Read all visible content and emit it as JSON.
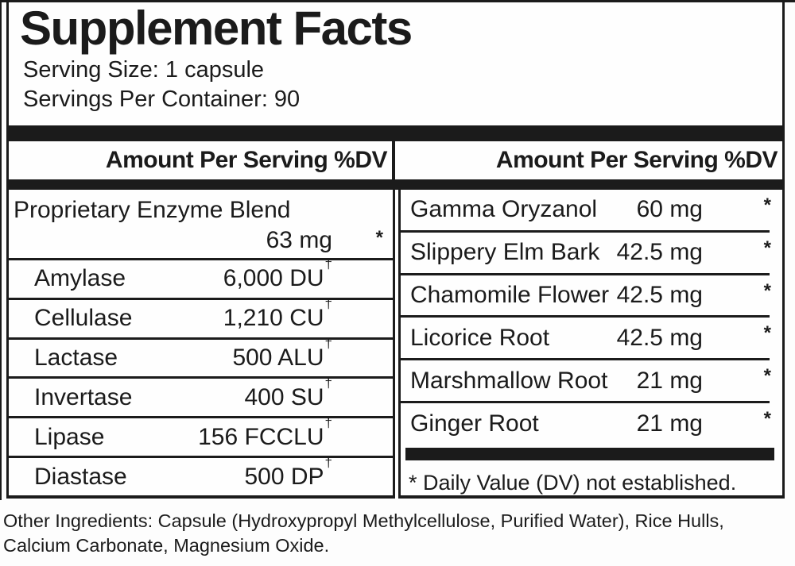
{
  "label": {
    "title": "Supplement Facts",
    "serving_size": "Serving Size: 1 capsule",
    "servings_per_container": "Servings Per Container: 90"
  },
  "table": {
    "left_header": "Amount Per Serving %DV",
    "right_header": "Amount Per Serving %DV",
    "left": {
      "blend_name": "Proprietary Enzyme Blend",
      "blend_amount": "63 mg",
      "blend_dv": "*",
      "rows": [
        {
          "name": "Amylase",
          "amount": "6,000 DU",
          "mark": "†"
        },
        {
          "name": "Cellulase",
          "amount": "1,210 CU",
          "mark": "†"
        },
        {
          "name": "Lactase",
          "amount": "500 ALU",
          "mark": "†"
        },
        {
          "name": "Invertase",
          "amount": "400 SU",
          "mark": "†"
        },
        {
          "name": "Lipase",
          "amount": "156 FCCLU",
          "mark": "†"
        },
        {
          "name": "Diastase",
          "amount": "500 DP",
          "mark": "†"
        }
      ]
    },
    "right": {
      "rows": [
        {
          "name": "Gamma Oryzanol",
          "amount": "60 mg",
          "dv": "*"
        },
        {
          "name": "Slippery Elm Bark",
          "amount": "42.5 mg",
          "dv": "*"
        },
        {
          "name": "Chamomile Flower",
          "amount": "42.5 mg",
          "dv": "*"
        },
        {
          "name": "Licorice Root",
          "amount": "42.5 mg",
          "dv": "*"
        },
        {
          "name": "Marshmallow Root",
          "amount": "21 mg",
          "dv": "*"
        },
        {
          "name": "Ginger Root",
          "amount": "21 mg",
          "dv": "*"
        }
      ],
      "footnote": "* Daily Value (DV) not established."
    }
  },
  "other_ingredients": "Other Ingredients: Capsule (Hydroxypropyl Methylcellulose, Purified Water), Rice Hulls, Calcium Carbonate, Magnesium Oxide.",
  "colors": {
    "ink": "#1b1b1b",
    "background": "#fdfdfd"
  }
}
